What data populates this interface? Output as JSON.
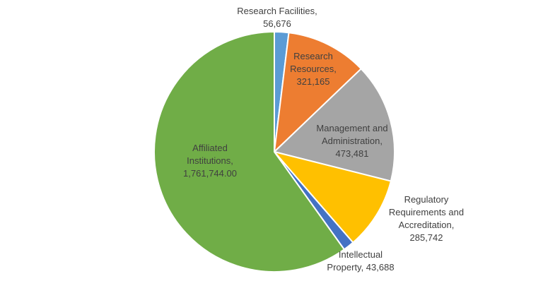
{
  "chart_data": {
    "type": "pie",
    "slices": [
      {
        "name": "Research Facilities",
        "value_label": "56,676",
        "value": 56676,
        "color": "#5B9BD5"
      },
      {
        "name": "Research Resources",
        "value_label": "321,165",
        "value": 321165,
        "color": "#ED7D31"
      },
      {
        "name": "Management and Administration",
        "value_label": "473,481",
        "value": 473481,
        "color": "#A5A5A5"
      },
      {
        "name": "Regulatory Requirements and Accreditation",
        "value_label": "285,742",
        "value": 285742,
        "color": "#FFC000"
      },
      {
        "name": "Intellectual Property",
        "value_label": "43,688",
        "value": 43688,
        "color": "#4472C4"
      },
      {
        "name": "Affiliated Institutions",
        "value_label": "1,761,744.00",
        "value": 1761744,
        "color": "#70AD47"
      }
    ]
  }
}
